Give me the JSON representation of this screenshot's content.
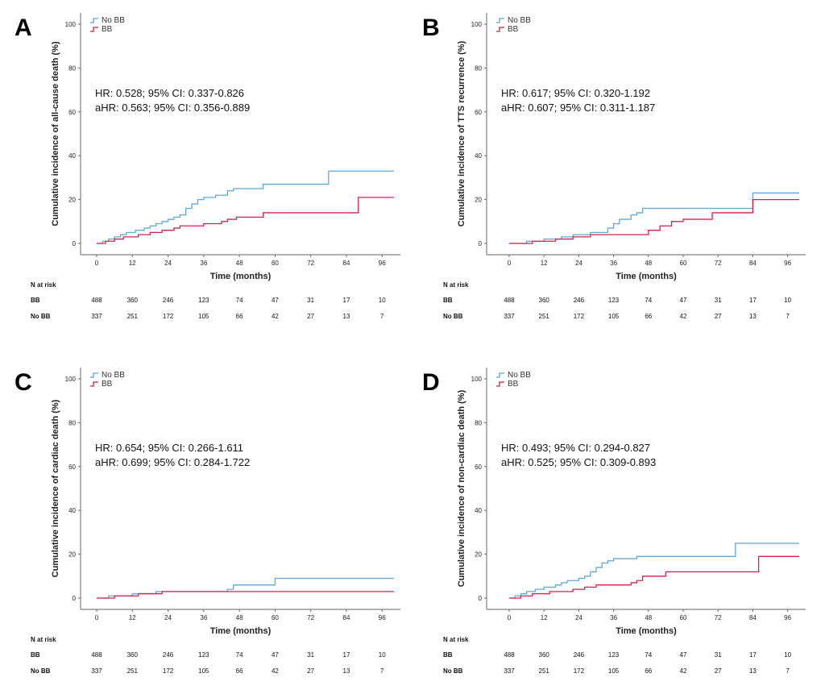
{
  "colors": {
    "no_bb": "#5fa8dc",
    "bb": "#d6204a",
    "axis": "#666666"
  },
  "risk_table": {
    "title": "N at risk",
    "rows": [
      {
        "label": "BB",
        "values": [
          "488",
          "360",
          "246",
          "123",
          "74",
          "47",
          "31",
          "17",
          "10"
        ]
      },
      {
        "label": "No BB",
        "values": [
          "337",
          "251",
          "172",
          "105",
          "66",
          "42",
          "27",
          "13",
          "7"
        ]
      }
    ]
  },
  "chart_data": [
    {
      "id": "A",
      "panel_label": "A",
      "type": "line",
      "title": "",
      "xlabel": "Time (months)",
      "ylabel": "Cumulative incidence of all-cause death (%)",
      "xlim": [
        0,
        100
      ],
      "ylim": [
        0,
        100
      ],
      "xticks": [
        "0",
        "12",
        "24",
        "36",
        "48",
        "60",
        "72",
        "84",
        "96"
      ],
      "yticks": [
        "0",
        "20",
        "40",
        "60",
        "80",
        "100"
      ],
      "legend": [
        "No BB",
        "BB"
      ],
      "legend_position": "top-left",
      "annotations": [
        "HR: 0.528; 95% CI: 0.337-0.826",
        "aHR: 0.563; 95% CI: 0.356-0.889"
      ],
      "series": [
        {
          "name": "No BB",
          "steps": [
            [
              0,
              0
            ],
            [
              2,
              1
            ],
            [
              4,
              2
            ],
            [
              6,
              3
            ],
            [
              8,
              4
            ],
            [
              10,
              5
            ],
            [
              13,
              6
            ],
            [
              16,
              7
            ],
            [
              18,
              8
            ],
            [
              20,
              9
            ],
            [
              22,
              10
            ],
            [
              24,
              11
            ],
            [
              26,
              12
            ],
            [
              28,
              13
            ],
            [
              30,
              16
            ],
            [
              32,
              18
            ],
            [
              34,
              20
            ],
            [
              36,
              21
            ],
            [
              40,
              22
            ],
            [
              44,
              24
            ],
            [
              46,
              25
            ],
            [
              56,
              27
            ],
            [
              78,
              33
            ],
            [
              100,
              33
            ]
          ]
        },
        {
          "name": "BB",
          "steps": [
            [
              0,
              0
            ],
            [
              3,
              1
            ],
            [
              6,
              2
            ],
            [
              9,
              3
            ],
            [
              14,
              4
            ],
            [
              18,
              5
            ],
            [
              22,
              6
            ],
            [
              26,
              7
            ],
            [
              28,
              8
            ],
            [
              36,
              9
            ],
            [
              42,
              10
            ],
            [
              44,
              11
            ],
            [
              47,
              12
            ],
            [
              56,
              14
            ],
            [
              88,
              21
            ],
            [
              100,
              21
            ]
          ]
        }
      ]
    },
    {
      "id": "B",
      "panel_label": "B",
      "type": "line",
      "title": "",
      "xlabel": "Time (months)",
      "ylabel": "Cumulative incidence of TTS recurrence (%)",
      "xlim": [
        0,
        100
      ],
      "ylim": [
        0,
        100
      ],
      "xticks": [
        "0",
        "12",
        "24",
        "36",
        "48",
        "60",
        "72",
        "84",
        "96"
      ],
      "yticks": [
        "0",
        "20",
        "40",
        "60",
        "80",
        "100"
      ],
      "legend": [
        "No BB",
        "BB"
      ],
      "legend_position": "top-left",
      "annotations": [
        "HR: 0.617; 95% CI: 0.320-1.192",
        "aHR: 0.607; 95% CI: 0.311-1.187"
      ],
      "series": [
        {
          "name": "No BB",
          "steps": [
            [
              0,
              0
            ],
            [
              6,
              1
            ],
            [
              12,
              2
            ],
            [
              18,
              3
            ],
            [
              22,
              4
            ],
            [
              28,
              5
            ],
            [
              34,
              7
            ],
            [
              36,
              9
            ],
            [
              38,
              11
            ],
            [
              42,
              13
            ],
            [
              44,
              14
            ],
            [
              46,
              16
            ],
            [
              84,
              23
            ],
            [
              100,
              23
            ]
          ]
        },
        {
          "name": "BB",
          "steps": [
            [
              0,
              0
            ],
            [
              8,
              1
            ],
            [
              16,
              2
            ],
            [
              22,
              3
            ],
            [
              28,
              4
            ],
            [
              46,
              4
            ],
            [
              48,
              6
            ],
            [
              52,
              8
            ],
            [
              56,
              10
            ],
            [
              60,
              11
            ],
            [
              70,
              14
            ],
            [
              84,
              20
            ],
            [
              100,
              20
            ]
          ]
        }
      ]
    },
    {
      "id": "C",
      "panel_label": "C",
      "type": "line",
      "title": "",
      "xlabel": "Time (months)",
      "ylabel": "Cumulative incidence of cardiac death (%)",
      "xlim": [
        0,
        100
      ],
      "ylim": [
        0,
        100
      ],
      "xticks": [
        "0",
        "12",
        "24",
        "36",
        "48",
        "60",
        "72",
        "84",
        "96"
      ],
      "yticks": [
        "0",
        "20",
        "40",
        "60",
        "80",
        "100"
      ],
      "legend": [
        "No BB",
        "BB"
      ],
      "legend_position": "top-left",
      "annotations": [
        "HR: 0.654; 95% CI: 0.266-1.611",
        "aHR: 0.699; 95% CI: 0.284-1.722"
      ],
      "series": [
        {
          "name": "No BB",
          "steps": [
            [
              0,
              0
            ],
            [
              4,
              1
            ],
            [
              12,
              2
            ],
            [
              20,
              3
            ],
            [
              44,
              4
            ],
            [
              46,
              6
            ],
            [
              60,
              9
            ],
            [
              100,
              9
            ]
          ]
        },
        {
          "name": "BB",
          "steps": [
            [
              0,
              0
            ],
            [
              6,
              1
            ],
            [
              14,
              2
            ],
            [
              22,
              3
            ],
            [
              100,
              3
            ]
          ]
        }
      ]
    },
    {
      "id": "D",
      "panel_label": "D",
      "type": "line",
      "title": "",
      "xlabel": "Time (months)",
      "ylabel": "Cumulative incidence of non-cardiac death (%)",
      "xlim": [
        0,
        100
      ],
      "ylim": [
        0,
        100
      ],
      "xticks": [
        "0",
        "12",
        "24",
        "36",
        "48",
        "60",
        "72",
        "84",
        "96"
      ],
      "yticks": [
        "0",
        "20",
        "40",
        "60",
        "80",
        "100"
      ],
      "legend": [
        "No BB",
        "BB"
      ],
      "legend_position": "top-left",
      "annotations": [
        "HR: 0.493; 95% CI: 0.294-0.827",
        "aHR: 0.525; 95% CI: 0.309-0.893"
      ],
      "series": [
        {
          "name": "No BB",
          "steps": [
            [
              0,
              0
            ],
            [
              2,
              1
            ],
            [
              4,
              2
            ],
            [
              6,
              3
            ],
            [
              9,
              4
            ],
            [
              12,
              5
            ],
            [
              16,
              6
            ],
            [
              18,
              7
            ],
            [
              20,
              8
            ],
            [
              24,
              9
            ],
            [
              26,
              10
            ],
            [
              28,
              12
            ],
            [
              30,
              14
            ],
            [
              32,
              16
            ],
            [
              34,
              17
            ],
            [
              36,
              18
            ],
            [
              44,
              19
            ],
            [
              78,
              25
            ],
            [
              100,
              25
            ]
          ]
        },
        {
          "name": "BB",
          "steps": [
            [
              0,
              0
            ],
            [
              4,
              1
            ],
            [
              8,
              2
            ],
            [
              14,
              3
            ],
            [
              22,
              4
            ],
            [
              26,
              5
            ],
            [
              30,
              6
            ],
            [
              42,
              7
            ],
            [
              44,
              8
            ],
            [
              46,
              10
            ],
            [
              54,
              12
            ],
            [
              86,
              19
            ],
            [
              100,
              19
            ]
          ]
        }
      ]
    }
  ]
}
